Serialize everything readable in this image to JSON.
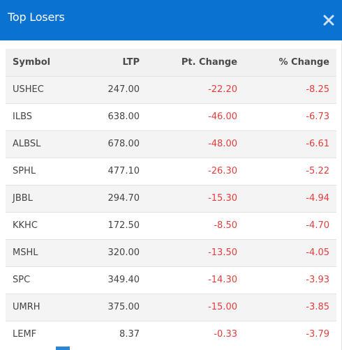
{
  "modal": {
    "title": "Top Losers",
    "close_icon": "close-icon",
    "accent_color": "#0a72d1"
  },
  "table": {
    "headers": {
      "symbol": "Symbol",
      "ltp": "LTP",
      "pt_change": "Pt. Change",
      "pct_change": "% Change"
    },
    "rows": [
      {
        "symbol": "USHEC",
        "ltp": "247.00",
        "pt_change": "-22.20",
        "pct_change": "-8.25"
      },
      {
        "symbol": "ILBS",
        "ltp": "638.00",
        "pt_change": "-46.00",
        "pct_change": "-6.73"
      },
      {
        "symbol": "ALBSL",
        "ltp": "678.00",
        "pt_change": "-48.00",
        "pct_change": "-6.61"
      },
      {
        "symbol": "SPHL",
        "ltp": "477.10",
        "pt_change": "-26.30",
        "pct_change": "-5.22"
      },
      {
        "symbol": "JBBL",
        "ltp": "294.70",
        "pt_change": "-15.30",
        "pct_change": "-4.94"
      },
      {
        "symbol": "KKHC",
        "ltp": "172.50",
        "pt_change": "-8.50",
        "pct_change": "-4.70"
      },
      {
        "symbol": "MSHL",
        "ltp": "320.00",
        "pt_change": "-13.50",
        "pct_change": "-4.05"
      },
      {
        "symbol": "SPC",
        "ltp": "349.40",
        "pt_change": "-14.30",
        "pct_change": "-3.93"
      },
      {
        "symbol": "UMRH",
        "ltp": "375.00",
        "pt_change": "-15.00",
        "pct_change": "-3.85"
      },
      {
        "symbol": "LEMF",
        "ltp": "8.37",
        "pt_change": "-0.33",
        "pct_change": "-3.79"
      }
    ],
    "negative_color": "#e43d3d"
  }
}
